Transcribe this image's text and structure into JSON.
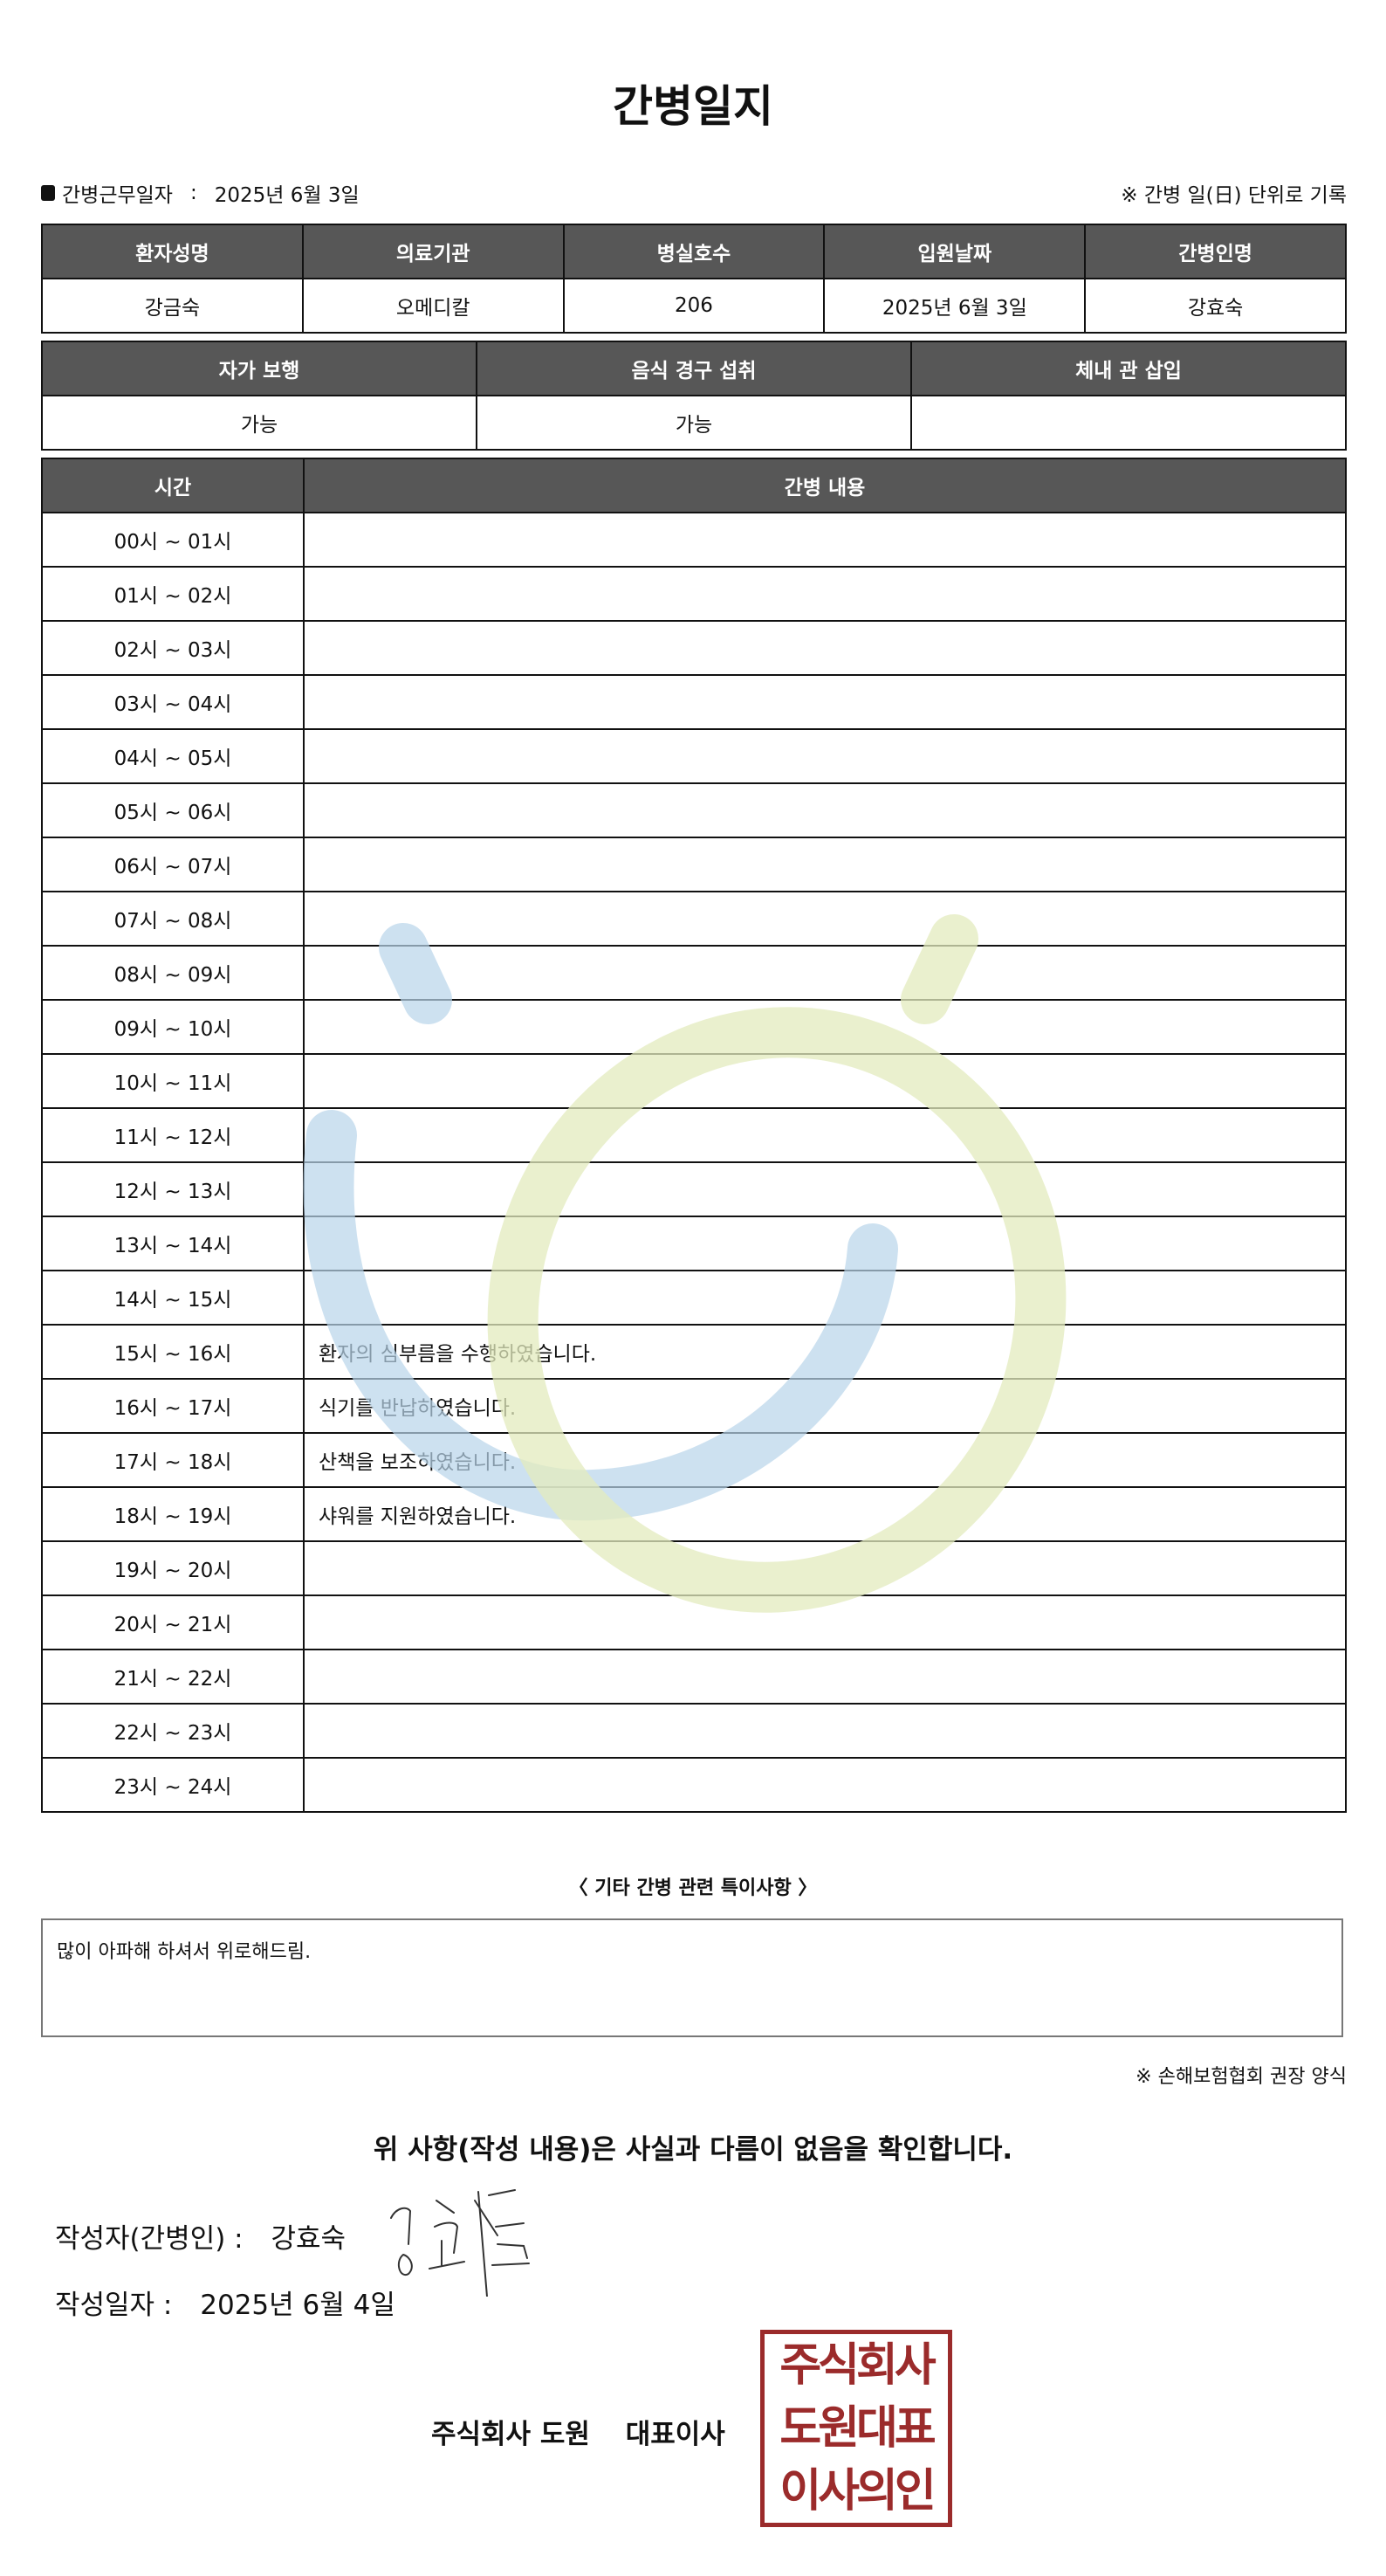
{
  "title": "간병일지",
  "info": {
    "work_date_label": "간병근무일자",
    "separator": ":",
    "work_date": "2025년 6월 3일",
    "note": "※ 간병 일(日) 단위로 기록"
  },
  "patient_table": {
    "headers": [
      "환자성명",
      "의료기관",
      "병실호수",
      "입원날짜",
      "간병인명"
    ],
    "values": [
      "강금숙",
      "오메디칼",
      "206",
      "2025년 6월 3일",
      "강효숙"
    ]
  },
  "status_table": {
    "headers": [
      "자가 보행",
      "음식 경구 섭취",
      "체내 관 삽입"
    ],
    "values": [
      "가능",
      "가능",
      ""
    ]
  },
  "log_table": {
    "headers": [
      "시간",
      "간병 내용"
    ],
    "rows": [
      {
        "time": "00시 ~ 01시",
        "content": ""
      },
      {
        "time": "01시 ~ 02시",
        "content": ""
      },
      {
        "time": "02시 ~ 03시",
        "content": ""
      },
      {
        "time": "03시 ~ 04시",
        "content": ""
      },
      {
        "time": "04시 ~ 05시",
        "content": ""
      },
      {
        "time": "05시 ~ 06시",
        "content": ""
      },
      {
        "time": "06시 ~ 07시",
        "content": ""
      },
      {
        "time": "07시 ~ 08시",
        "content": ""
      },
      {
        "time": "08시 ~ 09시",
        "content": ""
      },
      {
        "time": "09시 ~ 10시",
        "content": ""
      },
      {
        "time": "10시 ~ 11시",
        "content": ""
      },
      {
        "time": "11시 ~ 12시",
        "content": ""
      },
      {
        "time": "12시 ~ 13시",
        "content": ""
      },
      {
        "time": "13시 ~ 14시",
        "content": ""
      },
      {
        "time": "14시 ~ 15시",
        "content": ""
      },
      {
        "time": "15시 ~ 16시",
        "content": "환자의 심부름을 수행하였습니다."
      },
      {
        "time": "16시 ~ 17시",
        "content": "식기를 반납하였습니다."
      },
      {
        "time": "17시 ~ 18시",
        "content": "산책을 보조하였습니다."
      },
      {
        "time": "18시 ~ 19시",
        "content": "샤워를 지원하였습니다."
      },
      {
        "time": "19시 ~ 20시",
        "content": ""
      },
      {
        "time": "20시 ~ 21시",
        "content": ""
      },
      {
        "time": "21시 ~ 22시",
        "content": ""
      },
      {
        "time": "22시 ~ 23시",
        "content": ""
      },
      {
        "time": "23시 ~ 24시",
        "content": ""
      }
    ]
  },
  "special_notes": {
    "label": "〈 기타 간병 관련 특이사항 〉",
    "text": "많이 아파해 하셔서 위로해드림."
  },
  "association_note": "※ 손해보험협회 권장 양식",
  "confirmation": "위 사항(작성 내용)은 사실과 다름이 없음을 확인합니다.",
  "writer": {
    "label": "작성자(간병인) :",
    "name": "강효숙"
  },
  "written_date": {
    "label": "작성일자 :",
    "value": "2025년 6월 4일"
  },
  "company": {
    "name": "주식회사 도원",
    "title": "대표이사"
  },
  "stamp": {
    "lines": [
      "주식회사",
      "도원대표",
      "이사의인"
    ],
    "color": "#9b2b2b"
  },
  "colors": {
    "header_bg": "#575757",
    "watermark_blue": "#b8d4ea",
    "watermark_yellow": "#e3ebbd"
  }
}
